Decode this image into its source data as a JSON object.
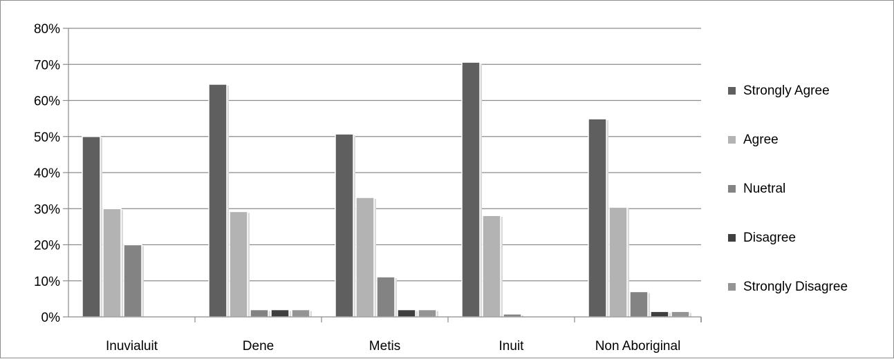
{
  "chart_data": {
    "type": "bar",
    "title": "",
    "xlabel": "",
    "ylabel": "",
    "categories": [
      "Inuvialuit",
      "Dene",
      "Metis",
      "Inuit",
      "Non Aboriginal"
    ],
    "series": [
      {
        "name": "Strongly Agree",
        "color": "#5f5f5f",
        "values": [
          50,
          64.5,
          50.7,
          70.6,
          54.9
        ]
      },
      {
        "name": "Agree",
        "color": "#b3b3b3",
        "values": [
          30,
          29.2,
          33.1,
          28.1,
          30.4
        ]
      },
      {
        "name": "Nuetral",
        "color": "#838383",
        "values": [
          20,
          2,
          11.1,
          0.8,
          7
        ]
      },
      {
        "name": "Disagree",
        "color": "#3f3f3f",
        "values": [
          0,
          2,
          2,
          0,
          1.5
        ]
      },
      {
        "name": "Strongly Disagree",
        "color": "#949494",
        "values": [
          0,
          2,
          2,
          0,
          1.5
        ]
      }
    ],
    "ylim": [
      0,
      80
    ],
    "yticks": [
      "0%",
      "10%",
      "20%",
      "30%",
      "40%",
      "50%",
      "60%",
      "70%",
      "80%"
    ],
    "grid": true,
    "legend_position": "right"
  }
}
